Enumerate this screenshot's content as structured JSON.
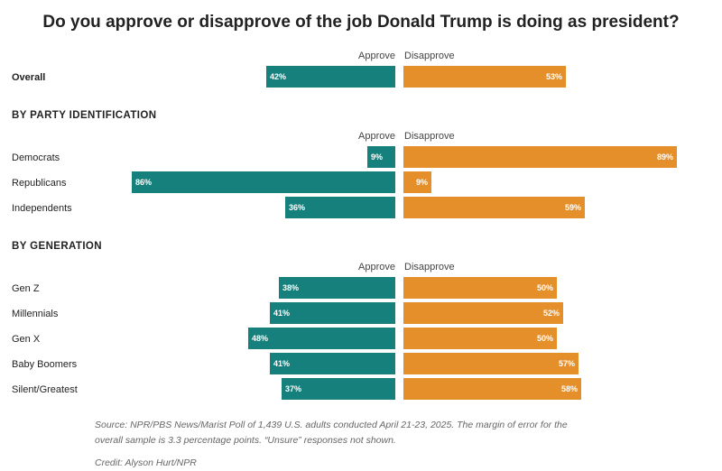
{
  "chart_data": {
    "type": "bar",
    "title": "Do you approve or disapprove of the job Donald Trump is doing as president?",
    "series_names": {
      "approve": "Approve",
      "disapprove": "Disapprove"
    },
    "groups": [
      {
        "label": "",
        "rows": [
          {
            "name": "Overall",
            "approve": 42,
            "disapprove": 53,
            "approve_label": "42%",
            "disapprove_label": "53%"
          }
        ]
      },
      {
        "label": "BY PARTY IDENTIFICATION",
        "rows": [
          {
            "name": "Democrats",
            "approve": 9,
            "disapprove": 89,
            "approve_label": "9%",
            "disapprove_label": "89%"
          },
          {
            "name": "Republicans",
            "approve": 86,
            "disapprove": 9,
            "approve_label": "86%",
            "disapprove_label": "9%"
          },
          {
            "name": "Independents",
            "approve": 36,
            "disapprove": 59,
            "approve_label": "36%",
            "disapprove_label": "59%"
          }
        ]
      },
      {
        "label": "BY GENERATION",
        "rows": [
          {
            "name": "Gen Z",
            "approve": 38,
            "disapprove": 50,
            "approve_label": "38%",
            "disapprove_label": "50%"
          },
          {
            "name": "Millennials",
            "approve": 41,
            "disapprove": 52,
            "approve_label": "41%",
            "disapprove_label": "52%"
          },
          {
            "name": "Gen X",
            "approve": 48,
            "disapprove": 50,
            "approve_label": "48%",
            "disapprove_label": "50%"
          },
          {
            "name": "Baby Boomers",
            "approve": 41,
            "disapprove": 57,
            "approve_label": "41%",
            "disapprove_label": "57%"
          },
          {
            "name": "Silent/Greatest",
            "approve": 37,
            "disapprove": 58,
            "approve_label": "37%",
            "disapprove_label": "58%"
          }
        ]
      }
    ],
    "value_range": [
      0,
      100
    ]
  },
  "colors": {
    "approve": "#16807d",
    "disapprove": "#e58f2a"
  },
  "footnote": {
    "source_line1": "Source: NPR/PBS News/Marist Poll of 1,439 U.S. adults conducted April 21-23, 2025. The margin of error for the",
    "source_line2": "overall sample is 3.3 percentage points. “Unsure” responses not shown.",
    "credit": "Credit: Alyson Hurt/NPR"
  }
}
